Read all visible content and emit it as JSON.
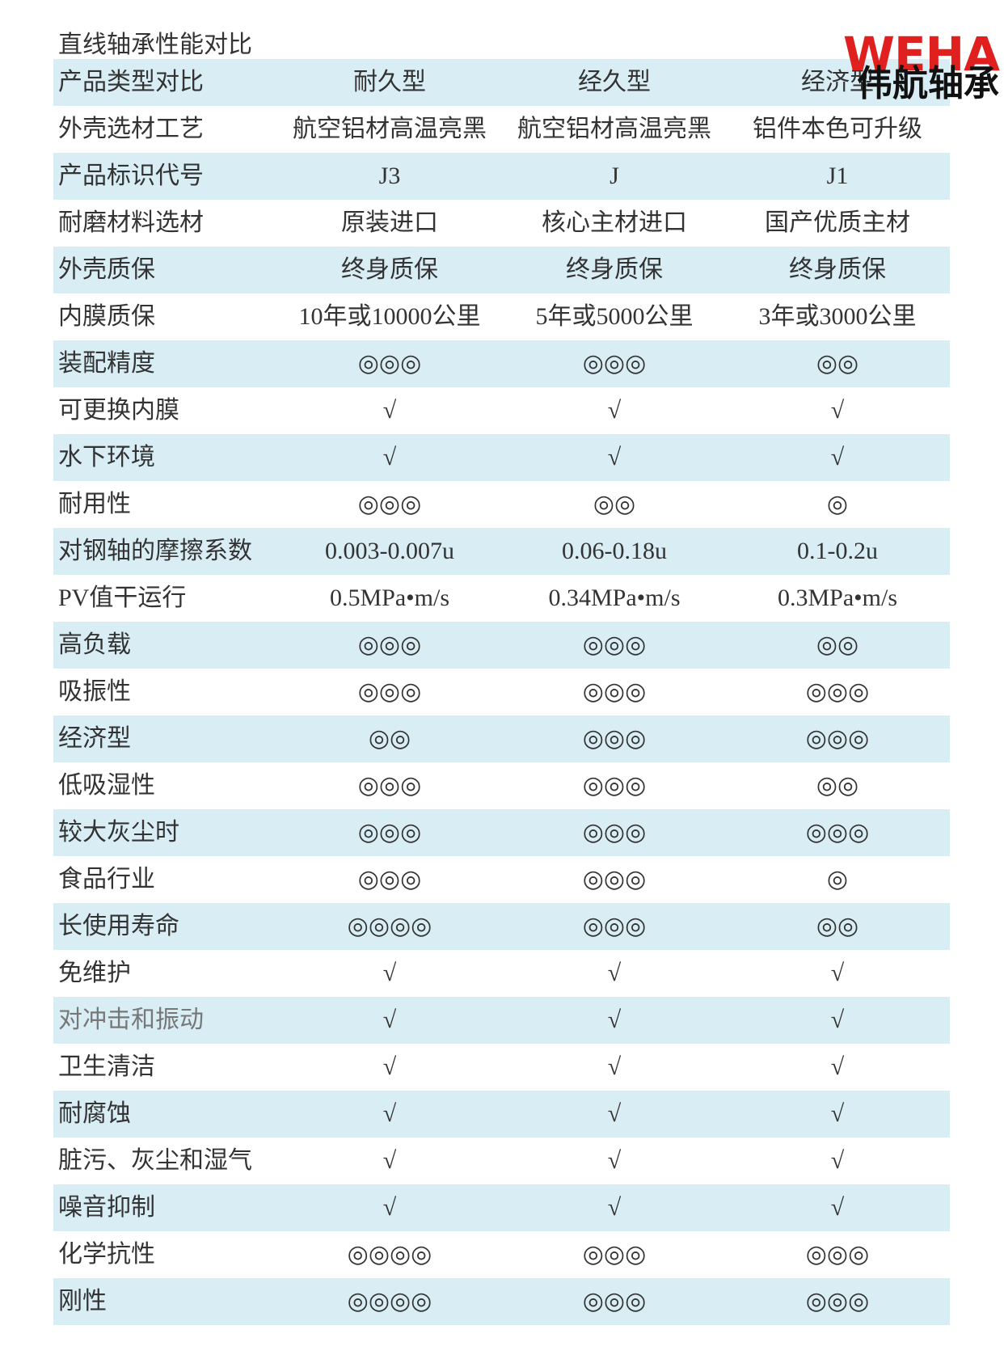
{
  "title": "直线轴承性能对比",
  "logo": {
    "brand": "WEHA",
    "name": "伟航轴承"
  },
  "table": {
    "header": [
      "产品类型对比",
      "耐久型",
      "经久型",
      "经济型"
    ],
    "rows": [
      [
        "外壳选材工艺",
        "航空铝材高温亮黑",
        "航空铝材高温亮黑",
        "铝件本色可升级"
      ],
      [
        "产品标识代号",
        "J3",
        "J",
        "J1"
      ],
      [
        "耐磨材料选材",
        "原装进口",
        "核心主材进口",
        "国产优质主材"
      ],
      [
        "外壳质保",
        "终身质保",
        "终身质保",
        "终身质保"
      ],
      [
        "内膜质保",
        "10年或10000公里",
        "5年或5000公里",
        "3年或3000公里"
      ],
      [
        "装配精度",
        "◎◎◎",
        "◎◎◎",
        "◎◎"
      ],
      [
        "可更换内膜",
        "√",
        "√",
        "√"
      ],
      [
        "水下环境",
        "√",
        "√",
        "√"
      ],
      [
        "耐用性",
        "◎◎◎",
        "◎◎",
        "◎"
      ],
      [
        "对钢轴的摩擦系数",
        "0.003-0.007u",
        "0.06-0.18u",
        "0.1-0.2u"
      ],
      [
        "PV值干运行",
        "0.5MPa•m/s",
        "0.34MPa•m/s",
        "0.3MPa•m/s"
      ],
      [
        "高负载",
        "◎◎◎",
        "◎◎◎",
        "◎◎"
      ],
      [
        "吸振性",
        "◎◎◎",
        "◎◎◎",
        "◎◎◎"
      ],
      [
        "经济型",
        "◎◎",
        "◎◎◎",
        "◎◎◎"
      ],
      [
        "低吸湿性",
        "◎◎◎",
        "◎◎◎",
        "◎◎"
      ],
      [
        "较大灰尘时",
        "◎◎◎",
        "◎◎◎",
        "◎◎◎"
      ],
      [
        "食品行业",
        "◎◎◎",
        "◎◎◎",
        "◎"
      ],
      [
        "长使用寿命",
        "◎◎◎◎",
        "◎◎◎",
        "◎◎"
      ],
      [
        "免维护",
        "√",
        "√",
        "√"
      ],
      [
        "对冲击和振动",
        "√",
        "√",
        "√"
      ],
      [
        "卫生清洁",
        "√",
        "√",
        "√"
      ],
      [
        "耐腐蚀",
        "√",
        "√",
        "√"
      ],
      [
        "脏污、灰尘和湿气",
        "√",
        "√",
        "√"
      ],
      [
        "噪音抑制",
        "√",
        "√",
        "√"
      ],
      [
        "化学抗性",
        "◎◎◎◎",
        "◎◎◎",
        "◎◎◎"
      ],
      [
        "刚性",
        "◎◎◎◎",
        "◎◎◎",
        "◎◎◎"
      ]
    ]
  }
}
